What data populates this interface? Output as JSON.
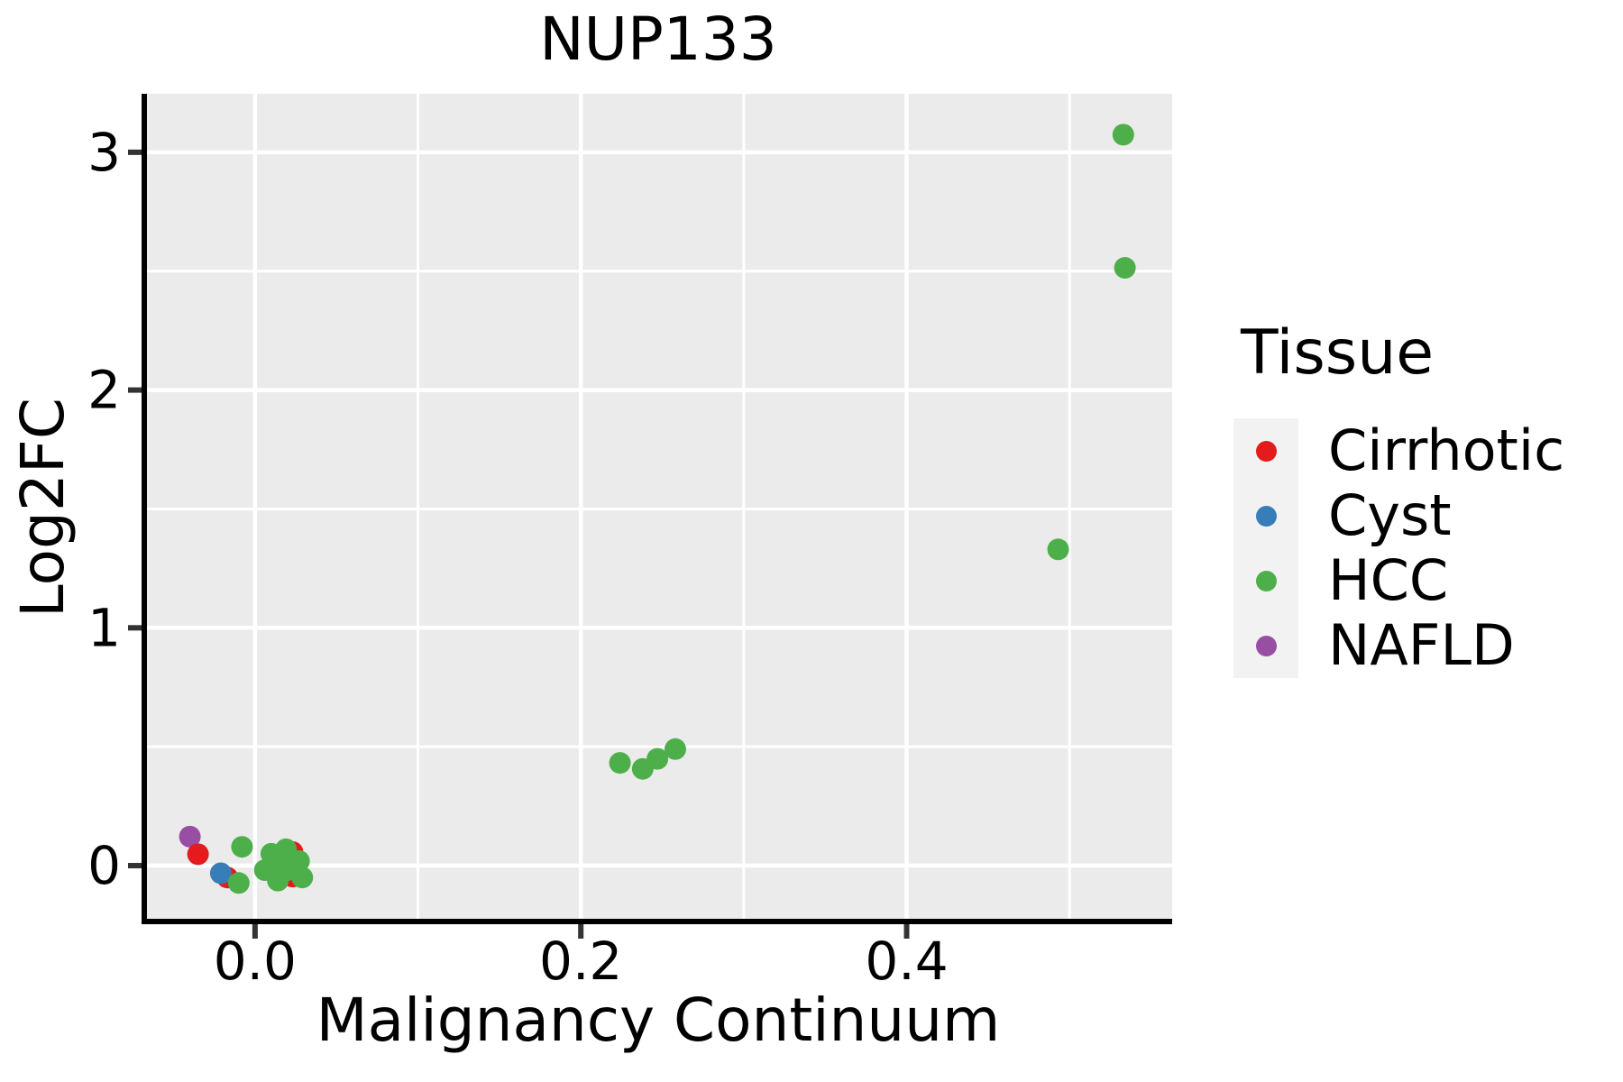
{
  "chart_data": {
    "type": "scatter",
    "title": "NUP133",
    "xlabel": "Malignancy Continuum",
    "ylabel": "Log2FC",
    "legend_title": "Tissue",
    "legend_position": "right",
    "grid": true,
    "panel_background": "#EBEBEB",
    "legend_key_background": "#F2F2F2",
    "gridline_color": "#FFFFFF",
    "axis_color": "#000000",
    "tick_color": "#333333",
    "xlim": [
      -0.068,
      0.563
    ],
    "ylim": [
      -0.235,
      3.246
    ],
    "x_ticks": [
      0.0,
      0.2,
      0.4
    ],
    "x_tick_labels": [
      "0.0",
      "0.2",
      "0.4"
    ],
    "x_minor_ticks": [
      0.1,
      0.3,
      0.5
    ],
    "y_ticks": [
      0,
      1,
      2,
      3
    ],
    "y_tick_labels": [
      "0",
      "1",
      "2",
      "3"
    ],
    "y_minor_ticks": [
      0.5,
      1.5,
      2.5
    ],
    "point_radius_px": 12,
    "draw_order": [
      "NAFLD",
      "Cirrhotic",
      "Cyst",
      "HCC"
    ],
    "series": [
      {
        "name": "Cirrhotic",
        "color": "#E41A1C",
        "points": [
          [
            -0.035,
            0.048
          ],
          [
            -0.017,
            -0.05
          ],
          [
            0.023,
            0.057
          ],
          [
            0.023,
            -0.046
          ]
        ]
      },
      {
        "name": "Cyst",
        "color": "#377EB8",
        "points": [
          [
            -0.021,
            -0.032
          ]
        ]
      },
      {
        "name": "HCC",
        "color": "#4DAF4A",
        "points": [
          [
            -0.008,
            0.079
          ],
          [
            -0.01,
            -0.073
          ],
          [
            0.006,
            -0.019
          ],
          [
            0.01,
            0.05
          ],
          [
            0.014,
            -0.063
          ],
          [
            0.014,
            0.006
          ],
          [
            0.019,
            0.069
          ],
          [
            0.02,
            -0.019
          ],
          [
            0.022,
            0.0
          ],
          [
            0.027,
            0.019
          ],
          [
            0.029,
            -0.05
          ],
          [
            0.224,
            0.432
          ],
          [
            0.238,
            0.407
          ],
          [
            0.247,
            0.449
          ],
          [
            0.258,
            0.49
          ],
          [
            0.493,
            1.33
          ],
          [
            0.533,
            3.074
          ],
          [
            0.534,
            2.514
          ]
        ]
      },
      {
        "name": "NAFLD",
        "color": "#984EA3",
        "points": [
          [
            -0.04,
            0.122
          ]
        ]
      }
    ]
  }
}
